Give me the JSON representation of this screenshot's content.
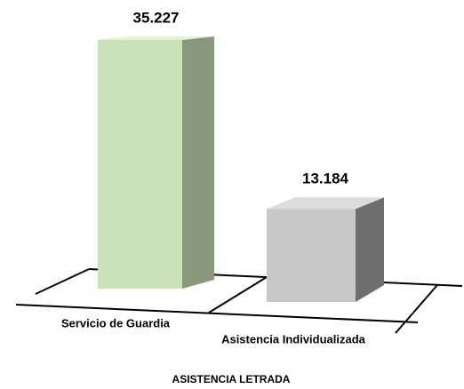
{
  "chart_data": {
    "type": "bar3d",
    "categories": [
      "Servicio de Guardia",
      "Asistencia Individualizada"
    ],
    "values": [
      35227,
      13184
    ],
    "value_labels": [
      "35.227",
      "13.184"
    ],
    "colors": [
      "#c9e0b8",
      "#c8c8c8"
    ],
    "x_label": "ASISTENCIA LETRADA"
  }
}
